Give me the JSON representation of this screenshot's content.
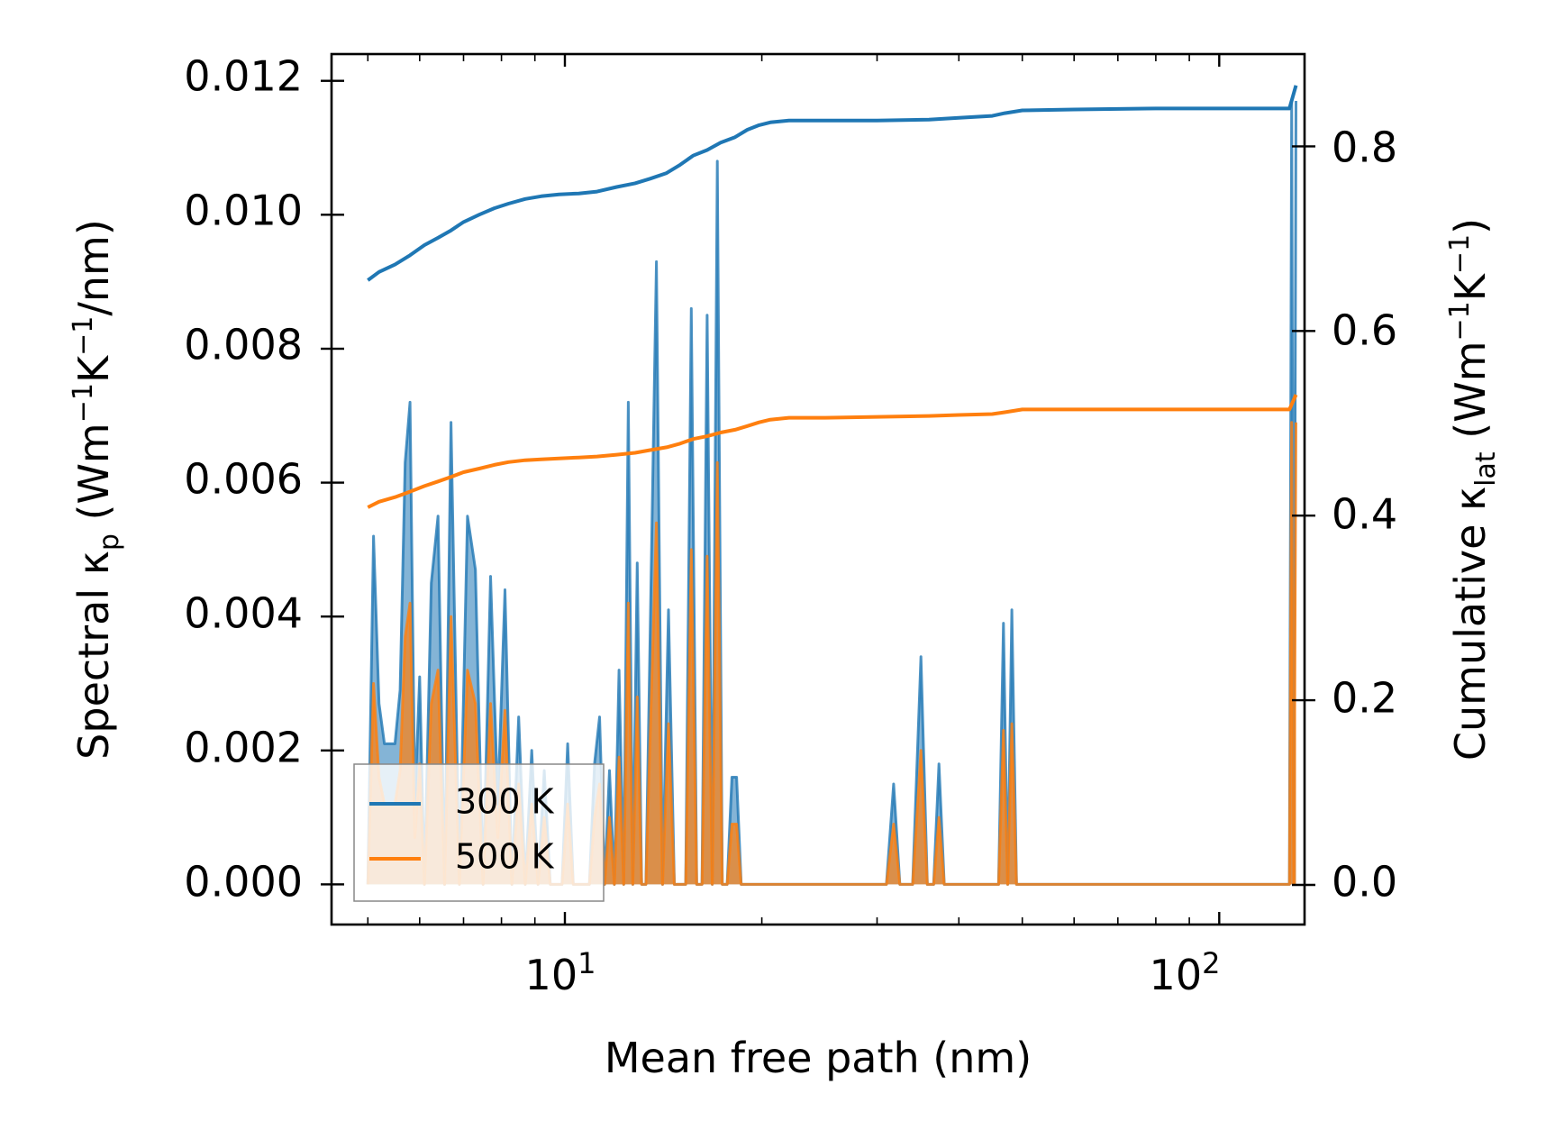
{
  "chart_data": {
    "type": "line",
    "xlabel": "Mean free path (nm)",
    "xscale": "log",
    "xlim": [
      4.4,
      135
    ],
    "y_left": {
      "label_parts": [
        "Spectral κ",
        "p",
        " (Wm",
        "−1",
        "K",
        "−1",
        "/nm)"
      ],
      "ylim": [
        -0.0006,
        0.0124
      ],
      "ticks": [
        0.0,
        0.002,
        0.004,
        0.006,
        0.008,
        0.01,
        0.012
      ],
      "tick_labels": [
        "0.000",
        "0.002",
        "0.004",
        "0.006",
        "0.008",
        "0.010",
        "0.012"
      ]
    },
    "y_right": {
      "label_parts": [
        "Cumulative κ",
        "lat",
        " (Wm",
        "−1",
        "K",
        "−1",
        ")"
      ],
      "ylim": [
        -0.043,
        0.9
      ],
      "ticks": [
        0.0,
        0.2,
        0.4,
        0.6,
        0.8
      ],
      "tick_labels": [
        "0.0",
        "0.2",
        "0.4",
        "0.6",
        "0.8"
      ]
    },
    "x_tick_labels": [
      {
        "value": 10,
        "base": "10",
        "exp": "1"
      },
      {
        "value": 100,
        "base": "10",
        "exp": "2"
      }
    ],
    "legend": {
      "position": "lower-left",
      "entries": [
        {
          "label": "300 K",
          "color": "#1f77b4"
        },
        {
          "label": "500 K",
          "color": "#ff7f0e"
        }
      ]
    },
    "series": [
      {
        "name": "300 K",
        "color": "#1f77b4",
        "cumulative": {
          "x": [
            5.0,
            5.2,
            5.5,
            5.8,
            6.1,
            6.4,
            6.7,
            7.0,
            7.4,
            7.8,
            8.2,
            8.7,
            9.2,
            9.8,
            10.5,
            11.2,
            12.0,
            12.8,
            13.5,
            14.3,
            15.0,
            15.7,
            16.5,
            17.3,
            18.2,
            19.0,
            19.8,
            20.6,
            22.0,
            25.0,
            30.0,
            36.0,
            40.0,
            45.0,
            47.0,
            50.0,
            60.0,
            80.0,
            100.0,
            128.0,
            131.0
          ],
          "y": [
            0.655,
            0.664,
            0.672,
            0.682,
            0.693,
            0.701,
            0.709,
            0.718,
            0.726,
            0.733,
            0.738,
            0.743,
            0.746,
            0.748,
            0.749,
            0.751,
            0.756,
            0.76,
            0.765,
            0.771,
            0.78,
            0.79,
            0.796,
            0.804,
            0.81,
            0.818,
            0.823,
            0.826,
            0.828,
            0.828,
            0.828,
            0.829,
            0.831,
            0.833,
            0.836,
            0.839,
            0.84,
            0.841,
            0.841,
            0.841,
            0.866
          ]
        },
        "spectral": {
          "x": [
            5.0,
            5.1,
            5.2,
            5.3,
            5.5,
            5.6,
            5.7,
            5.8,
            5.9,
            6.0,
            6.1,
            6.25,
            6.4,
            6.55,
            6.7,
            6.9,
            7.1,
            7.3,
            7.5,
            7.7,
            7.9,
            8.1,
            8.3,
            8.5,
            8.7,
            8.9,
            9.1,
            9.3,
            9.5,
            9.7,
            9.9,
            10.1,
            10.3,
            10.5,
            10.7,
            10.9,
            11.1,
            11.3,
            11.5,
            11.7,
            11.9,
            12.1,
            12.3,
            12.5,
            12.7,
            12.9,
            13.1,
            13.3,
            13.5,
            13.8,
            14.1,
            14.4,
            14.7,
            15.0,
            15.3,
            15.6,
            15.9,
            16.2,
            16.5,
            16.8,
            17.1,
            17.4,
            17.7,
            18.0,
            18.3,
            18.6,
            18.9,
            19.2,
            19.5,
            19.8,
            20.1,
            20.4,
            20.7,
            21.0,
            21.3,
            21.6,
            22.0,
            22.5,
            30.0,
            31.0,
            31.8,
            32.5,
            34.0,
            35.0,
            35.8,
            36.6,
            37.3,
            38.0,
            38.8,
            39.6,
            45.0,
            46.0,
            46.8,
            47.5,
            48.2,
            49.0,
            50.0,
            51.0,
            127.0,
            128.0,
            129.0,
            130.0,
            131.0
          ],
          "y": [
            0.0,
            0.0052,
            0.0027,
            0.0021,
            0.0021,
            0.0029,
            0.0063,
            0.0072,
            0.0012,
            0.0031,
            0.0,
            0.0045,
            0.0055,
            0.0,
            0.0069,
            0.0,
            0.0055,
            0.0047,
            0.0,
            0.0046,
            0.0012,
            0.0044,
            0.0,
            0.0025,
            0.0,
            0.002,
            0.0,
            0.0017,
            0.0,
            0.0,
            0.0,
            0.0021,
            0.0,
            0.0,
            0.0,
            0.0,
            0.0018,
            0.0025,
            0.0,
            0.0017,
            0.0,
            0.0032,
            0.0,
            0.0072,
            0.0,
            0.0048,
            0.0,
            0.0,
            0.0037,
            0.0093,
            0.0,
            0.0041,
            0.0,
            0.0,
            0.0,
            0.0086,
            0.0,
            0.0,
            0.0085,
            0.0,
            0.0108,
            0.0,
            0.0,
            0.0016,
            0.0016,
            0.0,
            0.0,
            0.0,
            0.0,
            0.0,
            0.0,
            0.0,
            0.0,
            0.0,
            0.0,
            0.0,
            0.0,
            0.0,
            0.0,
            0.0,
            0.0015,
            0.0,
            0.0,
            0.0034,
            0.0,
            0.0,
            0.0018,
            0.0,
            0.0,
            0.0,
            0.0,
            0.0,
            0.0039,
            0.0,
            0.0041,
            0.0,
            0.0,
            0.0,
            0.0,
            0.0,
            0.0117,
            0.0,
            0.0117
          ]
        }
      },
      {
        "name": "500 K",
        "color": "#ff7f0e",
        "cumulative": {
          "x": [
            5.0,
            5.2,
            5.5,
            5.8,
            6.1,
            6.4,
            6.7,
            7.0,
            7.4,
            7.8,
            8.2,
            8.7,
            9.2,
            9.8,
            10.5,
            11.2,
            12.0,
            12.8,
            13.5,
            14.3,
            15.0,
            15.7,
            16.5,
            17.3,
            18.2,
            19.0,
            19.8,
            20.6,
            22.0,
            25.0,
            30.0,
            36.0,
            40.0,
            45.0,
            47.0,
            50.0,
            60.0,
            80.0,
            100.0,
            128.0,
            131.0
          ],
          "y": [
            0.409,
            0.415,
            0.42,
            0.426,
            0.432,
            0.437,
            0.442,
            0.447,
            0.451,
            0.455,
            0.458,
            0.46,
            0.461,
            0.462,
            0.463,
            0.464,
            0.466,
            0.468,
            0.471,
            0.474,
            0.478,
            0.483,
            0.486,
            0.49,
            0.493,
            0.497,
            0.501,
            0.504,
            0.506,
            0.506,
            0.507,
            0.508,
            0.509,
            0.51,
            0.512,
            0.515,
            0.515,
            0.515,
            0.515,
            0.515,
            0.531
          ]
        },
        "spectral": {
          "x": [
            5.0,
            5.1,
            5.2,
            5.3,
            5.5,
            5.6,
            5.7,
            5.8,
            5.9,
            6.0,
            6.1,
            6.25,
            6.4,
            6.55,
            6.7,
            6.9,
            7.1,
            7.3,
            7.5,
            7.7,
            7.9,
            8.1,
            8.3,
            8.5,
            8.7,
            8.9,
            9.1,
            9.3,
            9.5,
            9.7,
            9.9,
            10.1,
            10.3,
            10.5,
            10.7,
            10.9,
            11.1,
            11.3,
            11.5,
            11.7,
            11.9,
            12.1,
            12.3,
            12.5,
            12.7,
            12.9,
            13.1,
            13.3,
            13.5,
            13.8,
            14.1,
            14.4,
            14.7,
            15.0,
            15.3,
            15.6,
            15.9,
            16.2,
            16.5,
            16.8,
            17.1,
            17.4,
            17.7,
            18.0,
            18.3,
            18.6,
            18.9,
            19.2,
            19.5,
            19.8,
            20.1,
            20.4,
            20.7,
            21.0,
            21.3,
            21.6,
            22.0,
            22.5,
            30.0,
            31.0,
            31.8,
            32.5,
            34.0,
            35.0,
            35.8,
            36.6,
            37.3,
            38.0,
            38.8,
            39.6,
            45.0,
            46.0,
            46.8,
            47.5,
            48.2,
            49.0,
            50.0,
            51.0,
            127.0,
            128.0,
            129.0,
            130.0,
            131.0
          ],
          "y": [
            0.0,
            0.003,
            0.0016,
            0.0012,
            0.0012,
            0.0017,
            0.0037,
            0.0042,
            0.0007,
            0.0018,
            0.0,
            0.0027,
            0.0032,
            0.0,
            0.004,
            0.0,
            0.0032,
            0.0027,
            0.0,
            0.0027,
            0.0007,
            0.0026,
            0.0,
            0.0015,
            0.0,
            0.0012,
            0.0,
            0.001,
            0.0,
            0.0,
            0.0,
            0.0012,
            0.0,
            0.0,
            0.0,
            0.0,
            0.001,
            0.0015,
            0.0,
            0.001,
            0.0,
            0.0019,
            0.0,
            0.0042,
            0.0,
            0.0028,
            0.0,
            0.0,
            0.0022,
            0.0054,
            0.0,
            0.0024,
            0.0,
            0.0,
            0.0,
            0.005,
            0.0,
            0.0,
            0.0049,
            0.0,
            0.0063,
            0.0,
            0.0,
            0.0009,
            0.0009,
            0.0,
            0.0,
            0.0,
            0.0,
            0.0,
            0.0,
            0.0,
            0.0,
            0.0,
            0.0,
            0.0,
            0.0,
            0.0,
            0.0,
            0.0,
            0.0009,
            0.0,
            0.0,
            0.002,
            0.0,
            0.0,
            0.001,
            0.0,
            0.0,
            0.0,
            0.0,
            0.0,
            0.0023,
            0.0,
            0.0024,
            0.0,
            0.0,
            0.0,
            0.0,
            0.0,
            0.0069,
            0.0,
            0.0069
          ]
        }
      }
    ]
  }
}
